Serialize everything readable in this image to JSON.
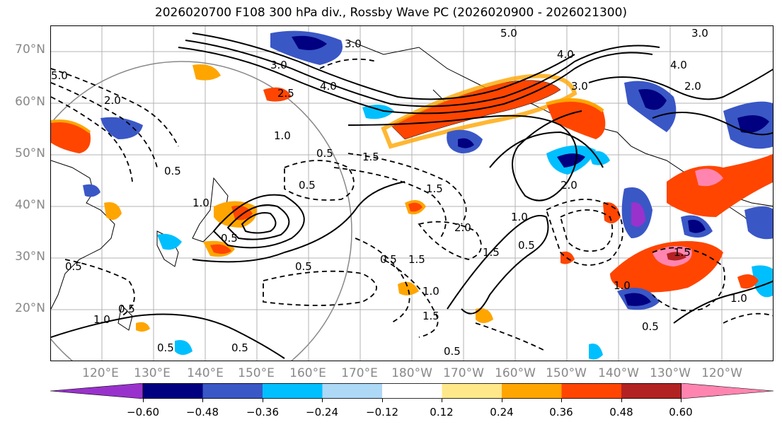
{
  "title": "2026020700 F108 300 hPa div., Rossby Wave PC (2026020900 - 2026021300)",
  "lat_labels": [
    "70°N",
    "60°N",
    "50°N",
    "40°N",
    "30°N",
    "20°N"
  ],
  "lon_labels": [
    "120°E",
    "130°E",
    "140°E",
    "150°E",
    "160°E",
    "170°E",
    "180°W",
    "170°W",
    "160°W",
    "150°W",
    "140°W",
    "130°W",
    "120°W"
  ],
  "colorbar": {
    "colors": [
      "#9932CC",
      "#000080",
      "#3A57C6",
      "#00BFFF",
      "#ADD8F6",
      "#FFFFFF",
      "#FFE88A",
      "#FFA500",
      "#FF4500",
      "#B22222",
      "#FF85B0"
    ],
    "ticks": [
      "−0.60",
      "−0.48",
      "−0.36",
      "−0.24",
      "−0.12",
      "0.12",
      "0.24",
      "0.36",
      "0.48",
      "0.60"
    ]
  },
  "contour_labels": [
    "3.0",
    "5.0",
    "4.0",
    "3.0",
    "3.0",
    "2.5",
    "1.5",
    "1.0",
    "0.5",
    "0.5",
    "0.5",
    "1.5",
    "2.0",
    "2.0",
    "1.5",
    "1.0",
    "0.5",
    "0.5",
    "0.5",
    "1.0",
    "1.5",
    "2.0",
    "4.0",
    "4.0",
    "2.0",
    "1.5",
    "1.0",
    "0.5",
    "0.5",
    "1.0",
    "0.5",
    "0.5",
    "1.0",
    "1.5",
    "0.5",
    "0.5",
    "1.0",
    "0.5",
    "3.0",
    "5.0"
  ]
}
